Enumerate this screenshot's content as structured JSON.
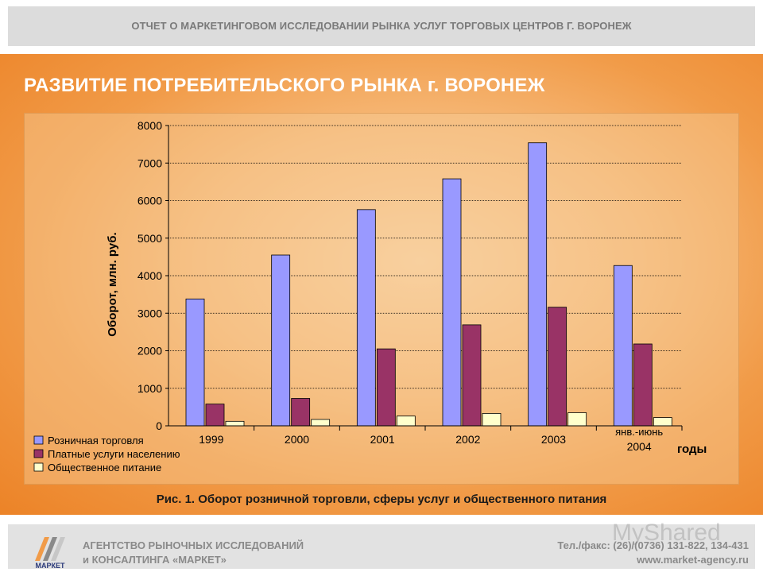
{
  "header": {
    "title": "ОТЧЕТ О МАРКЕТИНГОВОМ ИССЛЕДОВАНИИ РЫНКА УСЛУГ ТОРГОВЫХ ЦЕНТРОВ Г. ВОРОНЕЖ"
  },
  "slide": {
    "title": "РАЗВИТИЕ ПОТРЕБИТЕЛЬСКОГО РЫНКА г. ВОРОНЕЖ",
    "caption": "Рис. 1. Оборот розничной торговли, сферы услуг и общественного питания"
  },
  "colors": {
    "series1": "#9999ff",
    "series2": "#993366",
    "series3": "#ffffcc",
    "background": "#f19b48"
  },
  "chart_data": {
    "type": "bar",
    "ylabel": "Оборот, млн. руб.",
    "xlabel": "годы",
    "ylim": [
      0,
      8000
    ],
    "yticks": [
      "0",
      "1000",
      "2000",
      "3000",
      "4000",
      "5000",
      "6000",
      "7000",
      "8000"
    ],
    "categories": [
      {
        "top": "",
        "bottom": "1999"
      },
      {
        "top": "",
        "bottom": "2000"
      },
      {
        "top": "",
        "bottom": "2001"
      },
      {
        "top": "",
        "bottom": "2002"
      },
      {
        "top": "",
        "bottom": "2003"
      },
      {
        "top": "янв.-июнь",
        "bottom": "2004"
      }
    ],
    "grid": "horizontal",
    "legend_position": "bottom-left",
    "series": [
      {
        "name": "Розничная торговля",
        "values": [
          3380,
          4550,
          5760,
          6580,
          7540,
          4270
        ]
      },
      {
        "name": "Платные услуги населению",
        "values": [
          580,
          730,
          2050,
          2690,
          3160,
          2180
        ]
      },
      {
        "name": "Общественное питание",
        "values": [
          120,
          170,
          260,
          330,
          350,
          220
        ]
      }
    ]
  },
  "footer": {
    "company_line1": "АГЕНТСТВО РЫНОЧНЫХ ИССЛЕДОВАНИЙ",
    "company_line2": "и КОНСАЛТИНГА «МАРКЕТ»",
    "phone": "Тел./факс: (26)/(0736) 131-822, 134-431",
    "website": "www.market-agency.ru",
    "logo_text": "МАРКЕТ",
    "watermark": "MyShared"
  }
}
